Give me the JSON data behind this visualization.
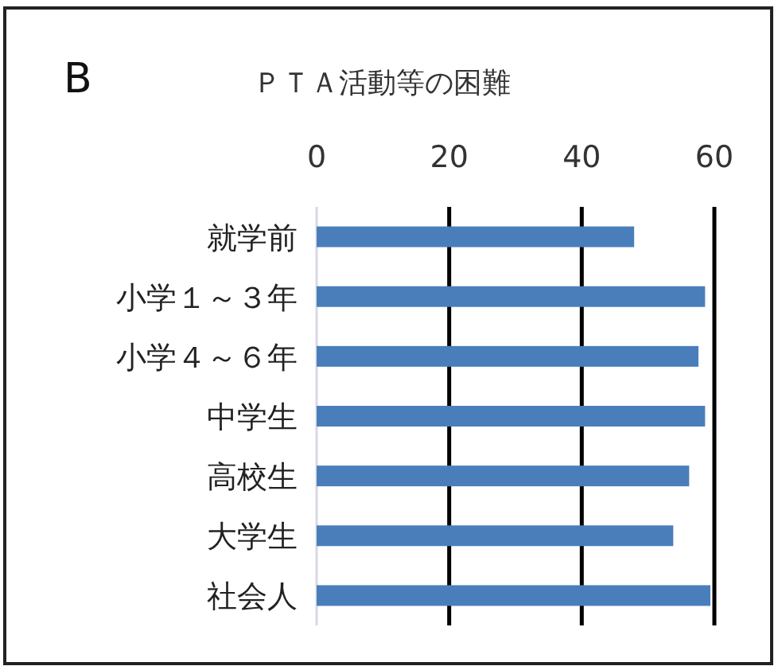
{
  "chart_data": {
    "type": "bar",
    "orientation": "horizontal",
    "title": "ＰＴＡ活動等の困難",
    "annotations": [
      "B"
    ],
    "categories": [
      "就学前",
      "小学１～３年",
      "小学４～６年",
      "中学生",
      "高校生",
      "大学生",
      "社会人"
    ],
    "values": [
      47.9,
      58.6,
      57.6,
      58.6,
      56.2,
      53.8,
      59.4
    ],
    "color": "#4a7ebb",
    "xlim": [
      0,
      60
    ],
    "xticks": [
      0,
      20,
      40,
      60
    ],
    "grid": "x"
  }
}
